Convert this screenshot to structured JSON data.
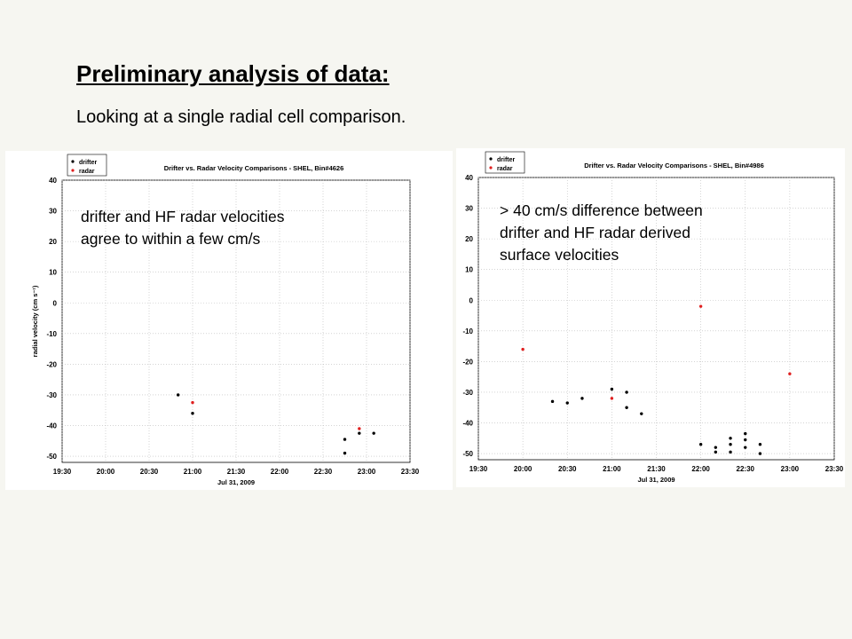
{
  "slide": {
    "title": "Preliminary analysis of data:",
    "subtitle": "Looking at a single radial cell comparison."
  },
  "chart_data": [
    {
      "type": "scatter",
      "title": "Drifter vs. Radar Velocity Comparisons - SHEL, Bin#4626",
      "xlabel": "Jul 31, 2009",
      "ylabel": "radial velocity (cm s⁻¹)",
      "x_ticks": [
        "19:30",
        "20:00",
        "20:30",
        "21:00",
        "21:30",
        "22:00",
        "22:30",
        "23:00",
        "23:30"
      ],
      "xlim": [
        "19:30",
        "23:30"
      ],
      "y_ticks": [
        40,
        30,
        20,
        10,
        0,
        -10,
        -20,
        -30,
        -40,
        -50
      ],
      "ylim": [
        -52,
        40
      ],
      "grid": true,
      "legend_position": "top-left",
      "legend_colors": [
        "#000000",
        "#e02020"
      ],
      "series": [
        {
          "name": "drifter",
          "color": "#000000",
          "points": [
            [
              "20:50",
              -30
            ],
            [
              "21:00",
              -36
            ],
            [
              "22:45",
              -44.5
            ],
            [
              "22:45",
              -49
            ],
            [
              "22:55",
              -42.5
            ],
            [
              "23:05",
              -42.5
            ]
          ]
        },
        {
          "name": "radar",
          "color": "#e02020",
          "points": [
            [
              "21:00",
              -32.5
            ],
            [
              "22:55",
              -41
            ]
          ]
        }
      ],
      "annotation": "drifter and HF radar velocities\nagree to within a few cm/s"
    },
    {
      "type": "scatter",
      "title": "Drifter vs. Radar Velocity Comparisons - SHEL, Bin#4986",
      "xlabel": "Jul 31, 2009",
      "ylabel": "radial velocity (cm s⁻¹)",
      "x_ticks": [
        "19:30",
        "20:00",
        "20:30",
        "21:00",
        "21:30",
        "22:00",
        "22:30",
        "23:00",
        "23:30"
      ],
      "xlim": [
        "19:30",
        "23:30"
      ],
      "y_ticks": [
        40,
        30,
        20,
        10,
        0,
        -10,
        -20,
        -30,
        -40,
        -50
      ],
      "ylim": [
        -52,
        40
      ],
      "grid": true,
      "legend_position": "top-left",
      "legend_colors": [
        "#000000",
        "#e02020"
      ],
      "series": [
        {
          "name": "drifter",
          "color": "#000000",
          "points": [
            [
              "20:20",
              -33
            ],
            [
              "20:30",
              -33.5
            ],
            [
              "20:40",
              -32
            ],
            [
              "21:00",
              -29
            ],
            [
              "21:10",
              -30
            ],
            [
              "21:10",
              -35
            ],
            [
              "21:20",
              -37
            ],
            [
              "22:00",
              -47
            ],
            [
              "22:10",
              -48
            ],
            [
              "22:10",
              -49.5
            ],
            [
              "22:20",
              -45
            ],
            [
              "22:20",
              -47
            ],
            [
              "22:20",
              -49.5
            ],
            [
              "22:30",
              -43.5
            ],
            [
              "22:30",
              -45.5
            ],
            [
              "22:30",
              -48
            ],
            [
              "22:40",
              -47
            ],
            [
              "22:40",
              -50
            ]
          ]
        },
        {
          "name": "radar",
          "color": "#e02020",
          "points": [
            [
              "20:00",
              -16
            ],
            [
              "21:00",
              -32
            ],
            [
              "22:00",
              -2
            ],
            [
              "23:00",
              -24
            ]
          ]
        }
      ],
      "annotation": "> 40 cm/s difference between\ndrifter and HF radar derived\nsurface velocities"
    }
  ]
}
